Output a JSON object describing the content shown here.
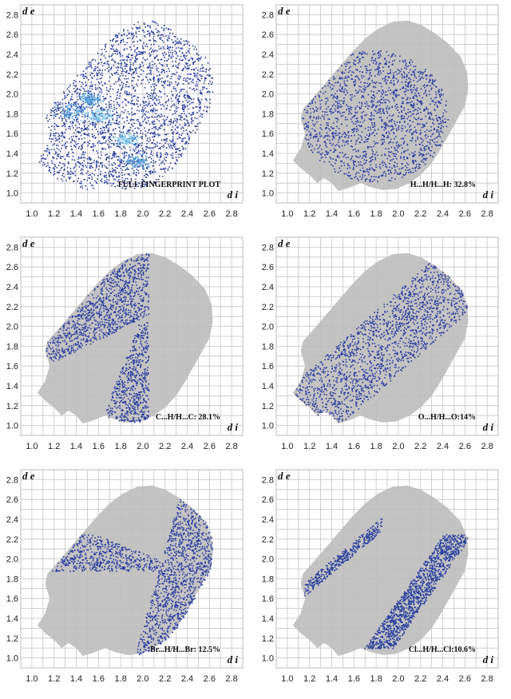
{
  "chart_data": [
    {
      "type": "heatmap",
      "label": "FULL FINGERPRINT PLOT",
      "xlabel": "d i",
      "ylabel": "d e",
      "x_ticks": [
        "1.0",
        "1.2",
        "1.4",
        "1.6",
        "1.8",
        "2.0",
        "2.2",
        "2.4",
        "2.6",
        "2.8"
      ],
      "y_ticks": [
        "1.0",
        "1.2",
        "1.4",
        "1.6",
        "1.8",
        "2.0",
        "2.2",
        "2.4",
        "2.6",
        "2.8"
      ],
      "xlim": [
        0.9,
        2.9
      ],
      "ylim": [
        0.9,
        2.9
      ],
      "grid": true,
      "highlight": "full",
      "highlight_color": "#2a3f9e",
      "background_color": "#bdbdbd"
    },
    {
      "type": "heatmap",
      "label": "H...H/H...H: 32.8%",
      "contact": "H...H",
      "percent": 32.8,
      "xlabel": "d i",
      "ylabel": "d e",
      "x_ticks": [
        "1.0",
        "1.2",
        "1.4",
        "1.6",
        "1.8",
        "2.0",
        "2.2",
        "2.4",
        "2.6",
        "2.8"
      ],
      "y_ticks": [
        "1.0",
        "1.2",
        "1.4",
        "1.6",
        "1.8",
        "2.0",
        "2.2",
        "2.4",
        "2.6",
        "2.8"
      ],
      "xlim": [
        0.9,
        2.9
      ],
      "ylim": [
        0.9,
        2.9
      ],
      "grid": true,
      "highlight": "center",
      "highlight_color": "#2a3f9e",
      "background_color": "#bdbdbd"
    },
    {
      "type": "heatmap",
      "label": "C...H/H...C: 28.1%",
      "contact": "C...H",
      "percent": 28.1,
      "xlabel": "d i",
      "ylabel": "d e",
      "x_ticks": [
        "1.0",
        "1.2",
        "1.4",
        "1.6",
        "1.8",
        "2.0",
        "2.2",
        "2.4",
        "2.6",
        "2.8"
      ],
      "y_ticks": [
        "1.0",
        "1.2",
        "1.4",
        "1.6",
        "1.8",
        "2.0",
        "2.2",
        "2.4",
        "2.6",
        "2.8"
      ],
      "xlim": [
        0.9,
        2.9
      ],
      "ylim": [
        0.9,
        2.9
      ],
      "grid": true,
      "highlight": "wings",
      "highlight_color": "#2a3f9e",
      "background_color": "#bdbdbd"
    },
    {
      "type": "heatmap",
      "label": "O...H/H...O:14%",
      "contact": "O...H",
      "percent": 14,
      "xlabel": "d i",
      "ylabel": "d e",
      "x_ticks": [
        "1.0",
        "1.2",
        "1.4",
        "1.6",
        "1.8",
        "2.0",
        "2.2",
        "2.4",
        "2.6",
        "2.8"
      ],
      "y_ticks": [
        "1.0",
        "1.2",
        "1.4",
        "1.6",
        "1.8",
        "2.0",
        "2.2",
        "2.4",
        "2.6",
        "2.8"
      ],
      "xlim": [
        0.9,
        2.9
      ],
      "ylim": [
        0.9,
        2.9
      ],
      "grid": true,
      "highlight": "spread",
      "highlight_color": "#2a3f9e",
      "background_color": "#bdbdbd"
    },
    {
      "type": "heatmap",
      "label": "Br...H/H...Br: 12.5%",
      "contact": "Br...H",
      "percent": 12.5,
      "xlabel": "d i",
      "ylabel": "d e",
      "x_ticks": [
        "1.0",
        "1.2",
        "1.4",
        "1.6",
        "1.8",
        "2.0",
        "2.2",
        "2.4",
        "2.6",
        "2.8"
      ],
      "y_ticks": [
        "1.0",
        "1.2",
        "1.4",
        "1.6",
        "1.8",
        "2.0",
        "2.2",
        "2.4",
        "2.6",
        "2.8"
      ],
      "xlim": [
        0.9,
        2.9
      ],
      "ylim": [
        0.9,
        2.9
      ],
      "grid": true,
      "highlight": "edges",
      "highlight_color": "#2a3f9e",
      "background_color": "#bdbdbd"
    },
    {
      "type": "heatmap",
      "label": "Cl...H/H...Cl:10.6%",
      "contact": "Cl...H",
      "percent": 10.6,
      "xlabel": "d i",
      "ylabel": "d e",
      "x_ticks": [
        "1.0",
        "1.2",
        "1.4",
        "1.6",
        "1.8",
        "2.0",
        "2.2",
        "2.4",
        "2.6",
        "2.8"
      ],
      "y_ticks": [
        "1.0",
        "1.2",
        "1.4",
        "1.6",
        "1.8",
        "2.0",
        "2.2",
        "2.4",
        "2.6",
        "2.8"
      ],
      "xlim": [
        0.9,
        2.9
      ],
      "ylim": [
        0.9,
        2.9
      ],
      "grid": true,
      "highlight": "spikes",
      "highlight_color": "#2a3f9e",
      "background_color": "#bdbdbd"
    }
  ]
}
